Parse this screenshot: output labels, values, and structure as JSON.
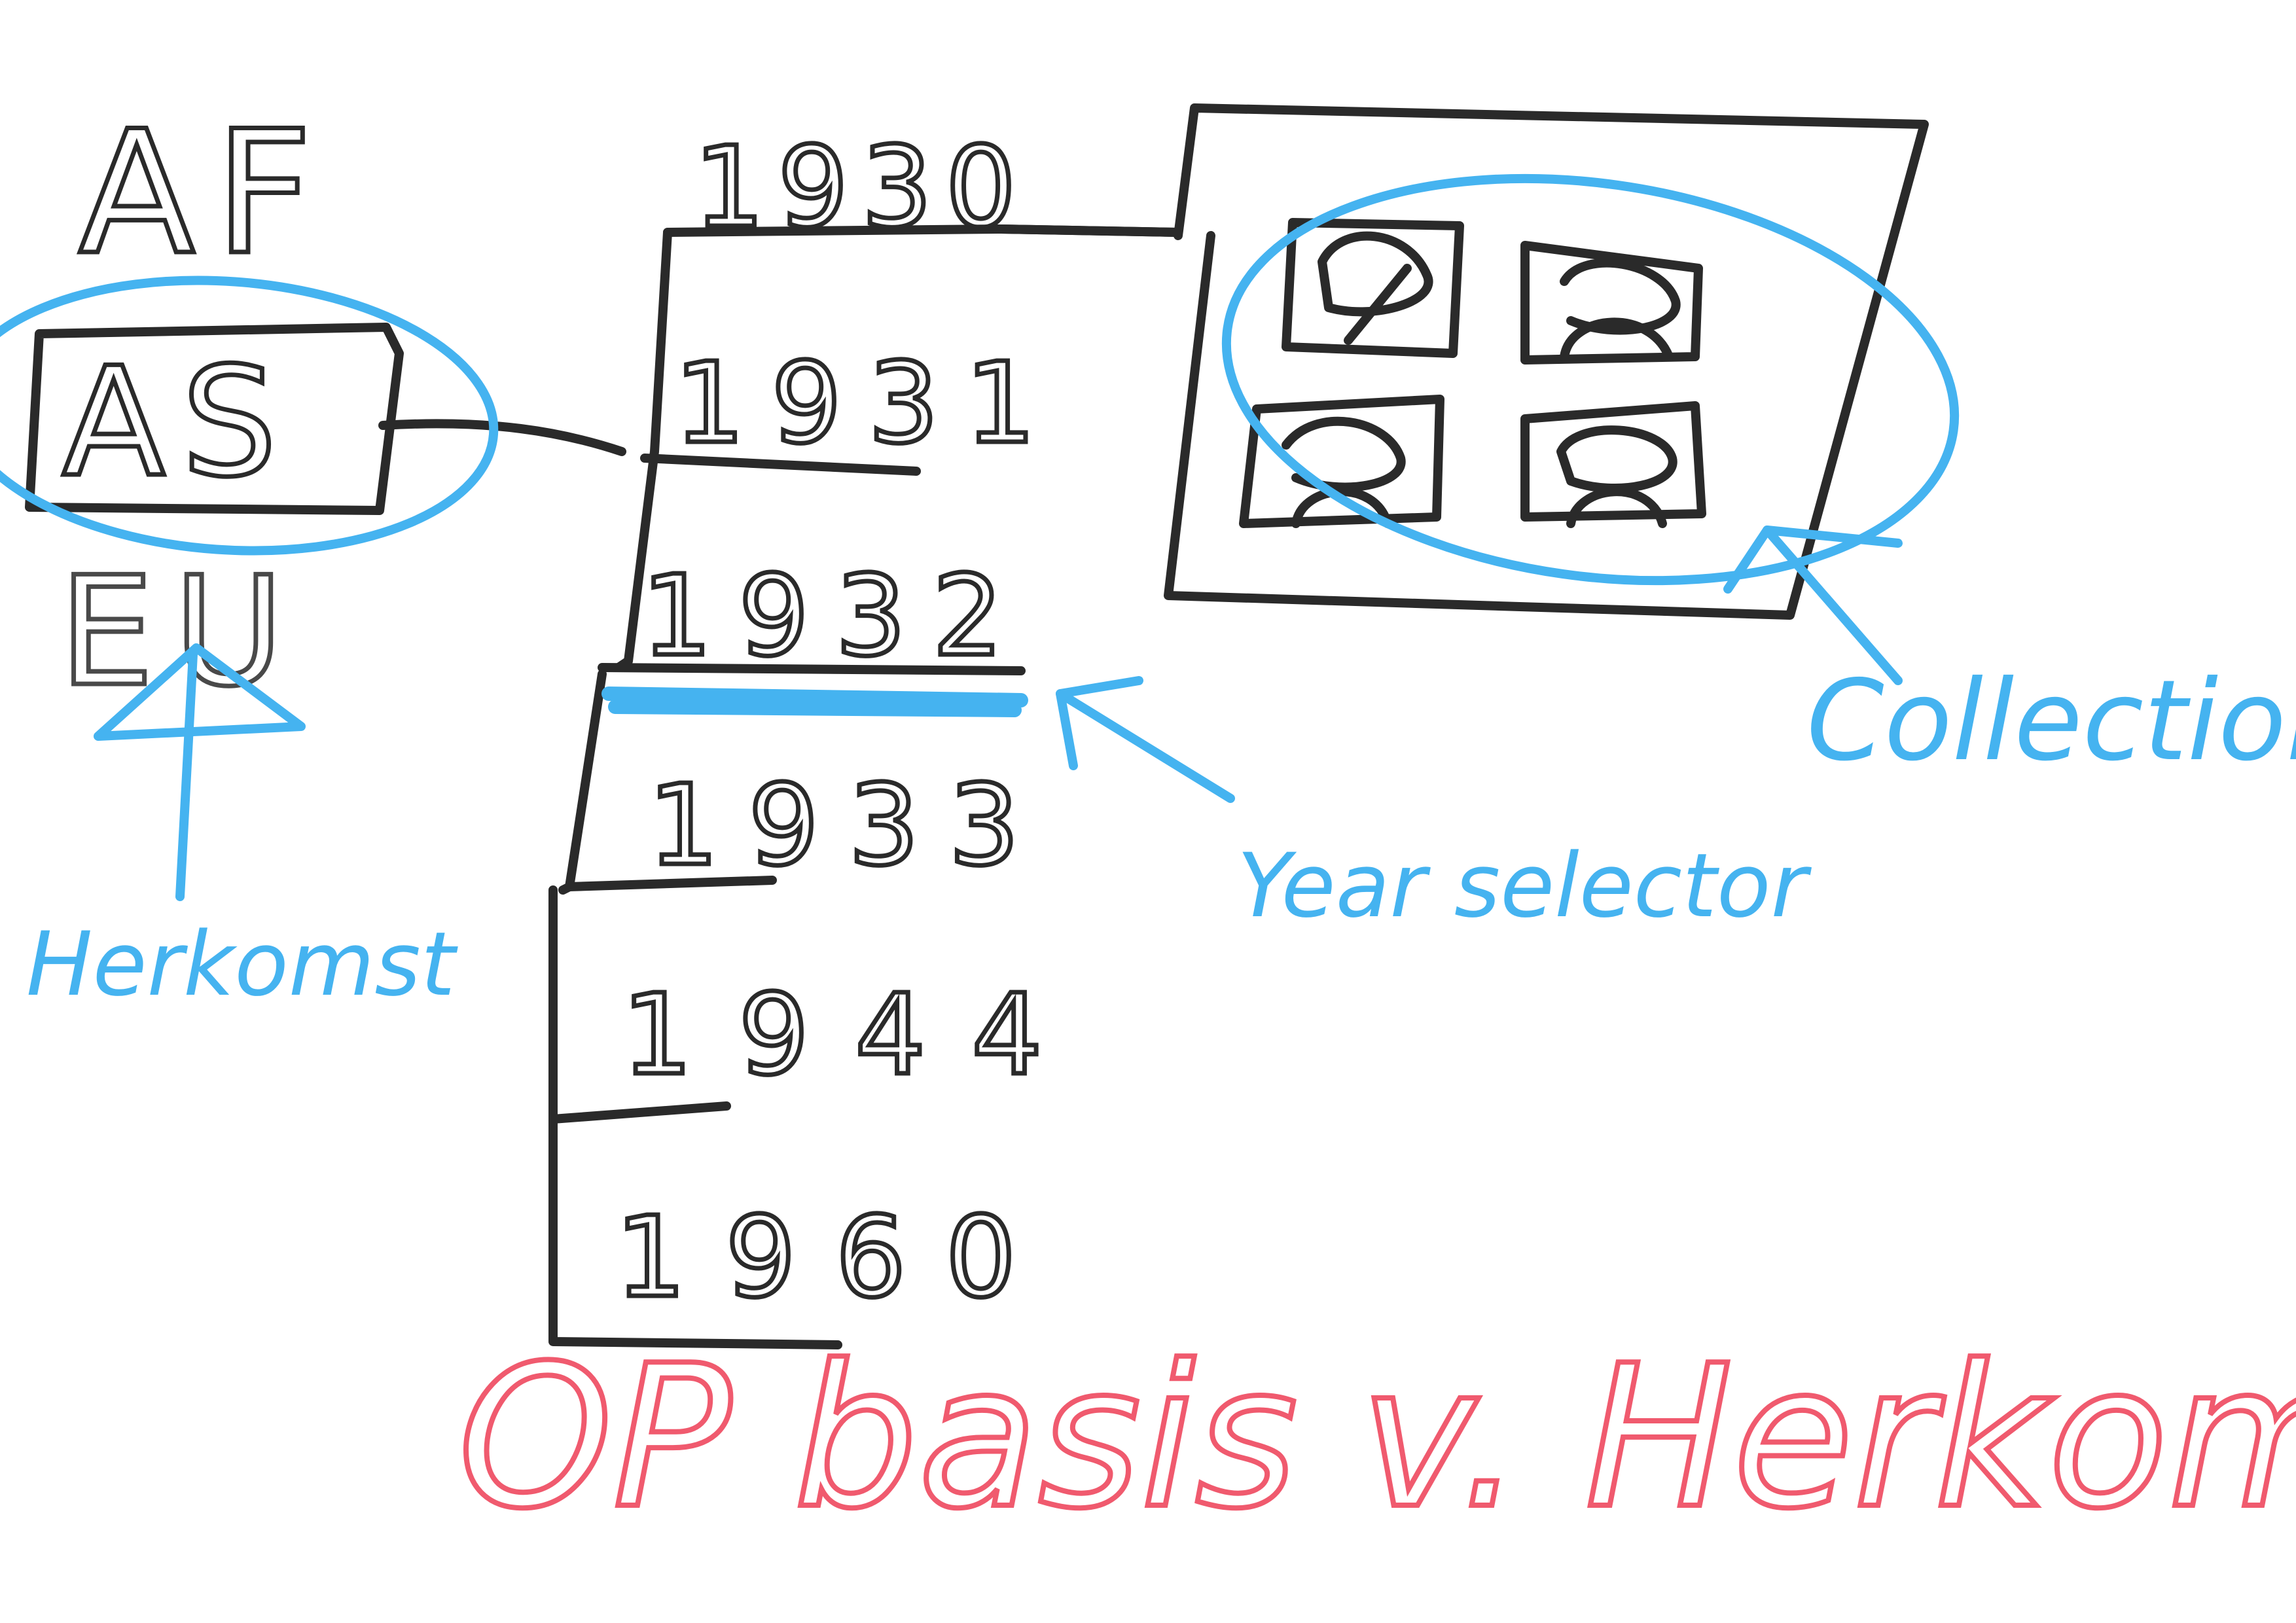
{
  "origins": {
    "items": [
      {
        "code": "AF",
        "state": "normal"
      },
      {
        "code": "AS",
        "state": "selected"
      },
      {
        "code": "EU",
        "state": "faint"
      }
    ]
  },
  "years": {
    "items": [
      {
        "label": "1930",
        "state": "normal"
      },
      {
        "label": "1931",
        "state": "normal"
      },
      {
        "label": "1932",
        "state": "highlighted"
      },
      {
        "label": "1933",
        "state": "normal"
      },
      {
        "label": "1944",
        "state": "normal"
      },
      {
        "label": "1960",
        "state": "normal"
      }
    ]
  },
  "collection": {
    "thumbnails": 4
  },
  "annotations": {
    "herkomst": "Herkomst",
    "year_selector": "Year selector",
    "collection": "Collection",
    "footer": "OP basis v. Herkomst"
  },
  "colors": {
    "ink": "#2a2a2a",
    "annotation_blue": "#45b3f0",
    "annotation_red": "#f05a6e",
    "background": "#ffffff"
  }
}
